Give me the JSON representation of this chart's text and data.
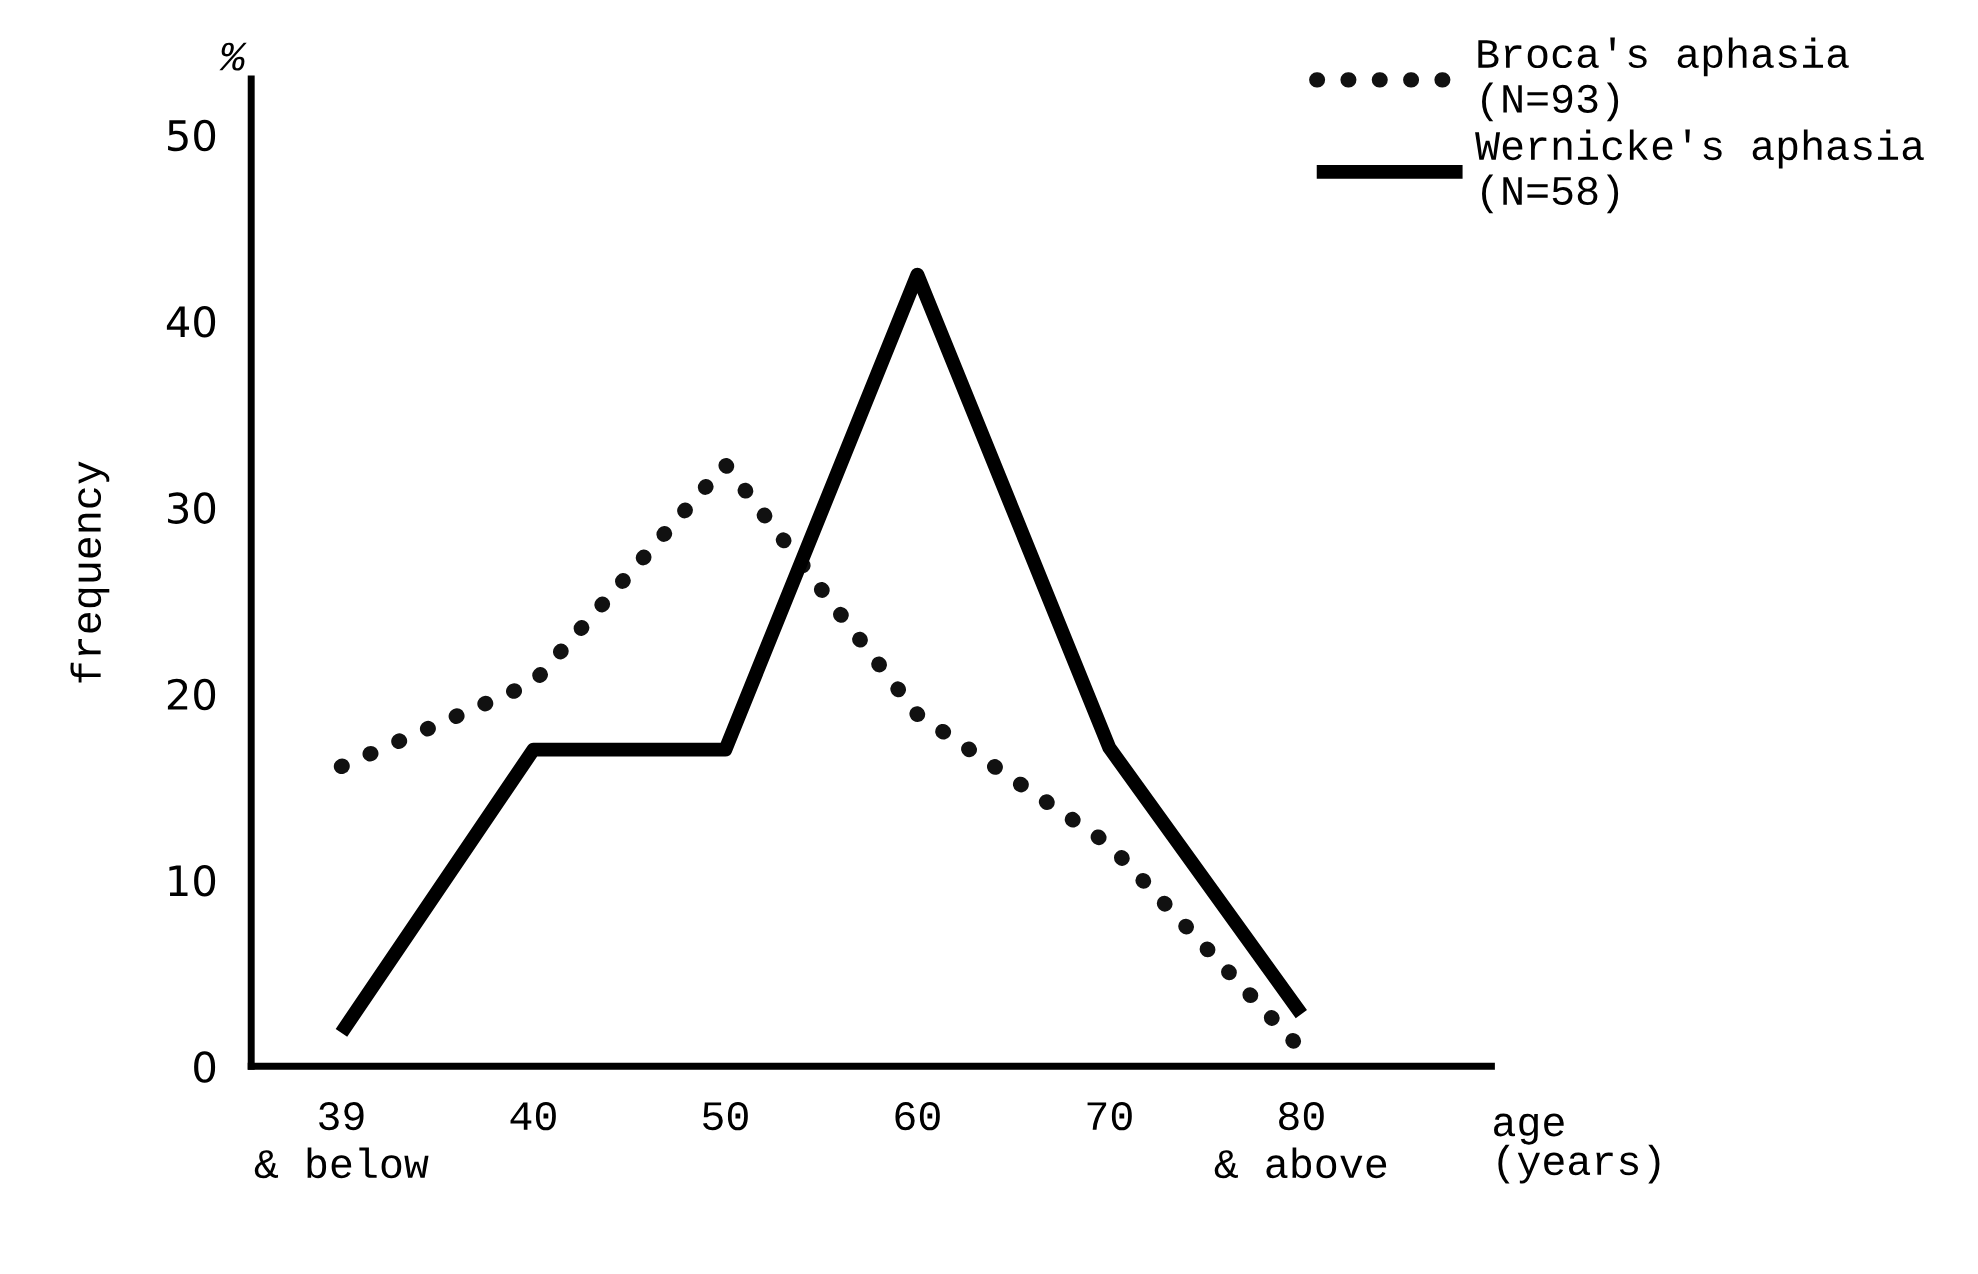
{
  "chart_data": {
    "type": "line",
    "ylabel": "frequency",
    "xlabel": "age\n(years)",
    "annotations": [
      "%"
    ],
    "categories": [
      "39\n& below",
      "40",
      "50",
      "60",
      "70",
      "80\n& above"
    ],
    "ylim": [
      0,
      53
    ],
    "yticks": [
      0,
      10,
      20,
      30,
      40,
      50
    ],
    "grid": false,
    "legend": "top right",
    "marker": "none",
    "series": [
      {
        "name": "Broca's aphasia\n(N=93)",
        "color": "#111111",
        "line_style": "dotted",
        "values": [
          16.1,
          20.6,
          32.3,
          18.9,
          11.9,
          0.9
        ]
      },
      {
        "name": "Wernicke's aphasia\n(N=58)",
        "color": "#000000",
        "line_style": "solid",
        "values": [
          1.8,
          17,
          17,
          42.5,
          17.1,
          2.8
        ]
      }
    ]
  }
}
